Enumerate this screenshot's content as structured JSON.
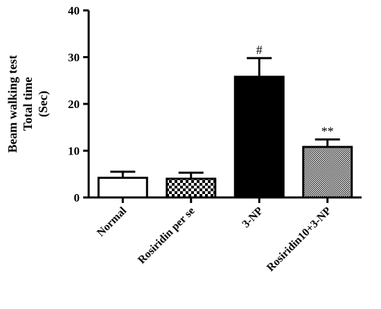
{
  "chart_data": {
    "type": "bar",
    "ylabel_lines": [
      "Beam walking test",
      "Total time",
      "(Sec)"
    ],
    "xlabel": "",
    "ylim": [
      0,
      40
    ],
    "y_ticks": [
      "0",
      "10",
      "20",
      "30",
      "40"
    ],
    "grid": false,
    "categories": [
      "Normal",
      "Rosiridin per se",
      "3-NP",
      "Rosiridin10+3-NP"
    ],
    "values": [
      4.2,
      4.0,
      25.8,
      10.8
    ],
    "error": [
      1.3,
      1.3,
      4.0,
      1.6
    ],
    "annotations": [
      "",
      "",
      "#",
      "**"
    ],
    "fill_styles": [
      "white",
      "checker",
      "black",
      "fine-dots"
    ],
    "colors": {
      "axis": "#000000",
      "bar_edge": "#000000",
      "solid": "#000000",
      "empty": "#ffffff"
    }
  }
}
